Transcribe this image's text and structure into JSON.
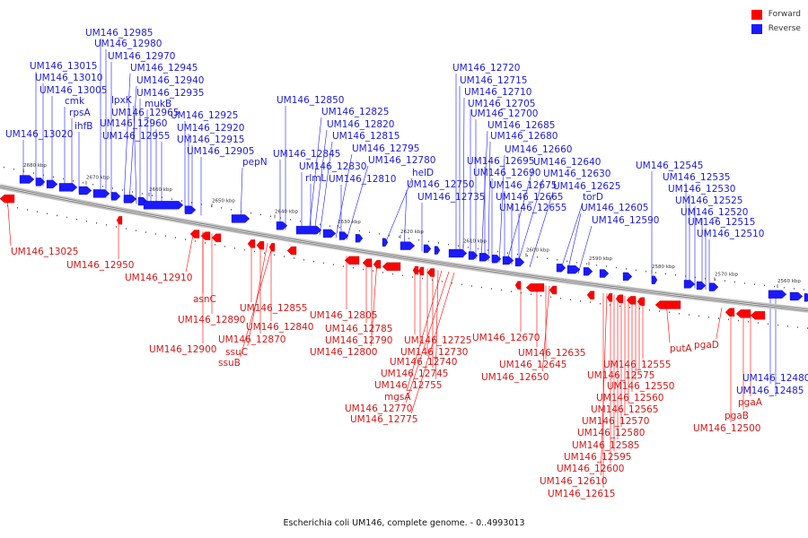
{
  "caption": "Escherichia coli UM146, complete genome. - 0..4993013",
  "legend": [
    {
      "label": "Forward",
      "color": "#ff0000"
    },
    {
      "label": "Reverse",
      "color": "#1a1aff"
    }
  ],
  "colors": {
    "forward": "#ff0000",
    "reverse": "#1a1aff",
    "backbone": "#8a8a8a"
  },
  "scale_ticks": [
    "2680 kbp",
    "2670 kbp",
    "2660 kbp",
    "2650 kbp",
    "2640 kbp",
    "2630 kbp",
    "2620 kbp",
    "2610 kbp",
    "2600 kbp",
    "2590 kbp",
    "2580 kbp",
    "2570 kbp",
    "2560 kbp"
  ],
  "reverse_labels": [
    "UM146_12985",
    "UM146_12980",
    "UM146_12970",
    "UM146_13015",
    "UM146_12945",
    "UM146_13010",
    "UM146_12940",
    "UM146_13005",
    "lpxK",
    "UM146_12935",
    "cmk",
    "mukB",
    "rpsA",
    "UM146_12965",
    "UM146_12925",
    "ihfB",
    "UM146_12960",
    "UM146_12920",
    "UM146_13020",
    "UM146_12955",
    "UM146_12915",
    "UM146_12905",
    "pepN",
    "UM146_12850",
    "UM146_12825",
    "UM146_12820",
    "UM146_12815",
    "UM146_12845",
    "UM146_12795",
    "UM146_12830",
    "UM146_12780",
    "rlmL",
    "UM146_12810",
    "helD",
    "UM146_12750",
    "UM146_12735",
    "UM146_12720",
    "UM146_12715",
    "UM146_12710",
    "UM146_12705",
    "UM146_12700",
    "UM146_12685",
    "UM146_12680",
    "UM146_12660",
    "UM146_12695",
    "UM146_12640",
    "UM146_12690",
    "UM146_12630",
    "UM146_12675",
    "UM146_12625",
    "UM146_12665",
    "torD",
    "UM146_12655",
    "UM146_12605",
    "UM146_12590",
    "UM146_12545",
    "UM146_12535",
    "UM146_12530",
    "UM146_12525",
    "UM146_12520",
    "UM146_12515",
    "UM146_12510",
    "UM146_12480",
    "UM146_12485"
  ],
  "forward_labels": [
    "UM146_13025",
    "UM146_12950",
    "UM146_12910",
    "asnC",
    "UM146_12855",
    "UM146_12890",
    "UM146_12840",
    "UM146_12870",
    "UM146_12900",
    "ssuC",
    "ssuB",
    "UM146_12805",
    "UM146_12785",
    "UM146_12790",
    "UM146_12800",
    "UM146_12725",
    "UM146_12730",
    "UM146_12740",
    "UM146_12745",
    "UM146_12755",
    "mgsA",
    "UM146_12770",
    "UM146_12775",
    "UM146_12670",
    "UM146_12635",
    "UM146_12645",
    "UM146_12650",
    "putA",
    "pgaD",
    "UM146_12555",
    "UM146_12575",
    "UM146_12550",
    "UM146_12560",
    "UM146_12565",
    "UM146_12570",
    "UM146_12580",
    "UM146_12585",
    "UM146_12595",
    "UM146_12600",
    "UM146_12610",
    "UM146_12615",
    "pgaA",
    "pgaB",
    "UM146_12500"
  ]
}
